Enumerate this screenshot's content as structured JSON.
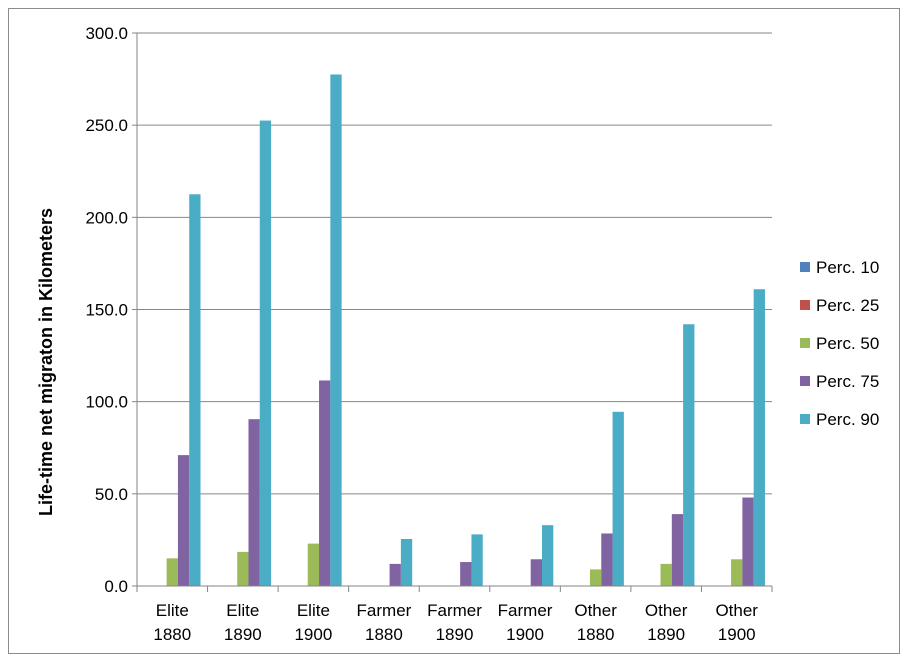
{
  "chart_data": {
    "type": "bar",
    "title": "",
    "xlabel": "",
    "ylabel": "Life-time net migraton in Kilometers",
    "ylim": [
      0,
      300
    ],
    "yticks": [
      "0.0",
      "50.0",
      "100.0",
      "150.0",
      "200.0",
      "250.0",
      "300.0"
    ],
    "grid": true,
    "legend_position": "right",
    "categories": [
      [
        "Elite",
        "1880"
      ],
      [
        "Elite",
        "1890"
      ],
      [
        "Elite",
        "1900"
      ],
      [
        "Farmer",
        "1880"
      ],
      [
        "Farmer",
        "1890"
      ],
      [
        "Farmer",
        "1900"
      ],
      [
        "Other",
        "1880"
      ],
      [
        "Other",
        "1890"
      ],
      [
        "Other",
        "1900"
      ]
    ],
    "series": [
      {
        "name": "Perc. 10",
        "color": "#4f81bd",
        "values": [
          0,
          0,
          0,
          0,
          0,
          0,
          0,
          0,
          0
        ]
      },
      {
        "name": "Perc. 25",
        "color": "#c0504d",
        "values": [
          0,
          0,
          0,
          0,
          0,
          0,
          0,
          0,
          0
        ]
      },
      {
        "name": "Perc. 50",
        "color": "#9bbb59",
        "values": [
          15,
          18.5,
          23,
          0,
          0,
          0,
          9,
          12,
          14.5
        ]
      },
      {
        "name": "Perc. 75",
        "color": "#8064a2",
        "values": [
          71,
          90.5,
          111.5,
          12,
          13,
          14.5,
          28.5,
          39,
          48
        ]
      },
      {
        "name": "Perc. 90",
        "color": "#4bacc6",
        "values": [
          212.5,
          252.5,
          277.5,
          25.5,
          28,
          33,
          94.5,
          142,
          161
        ]
      }
    ]
  }
}
